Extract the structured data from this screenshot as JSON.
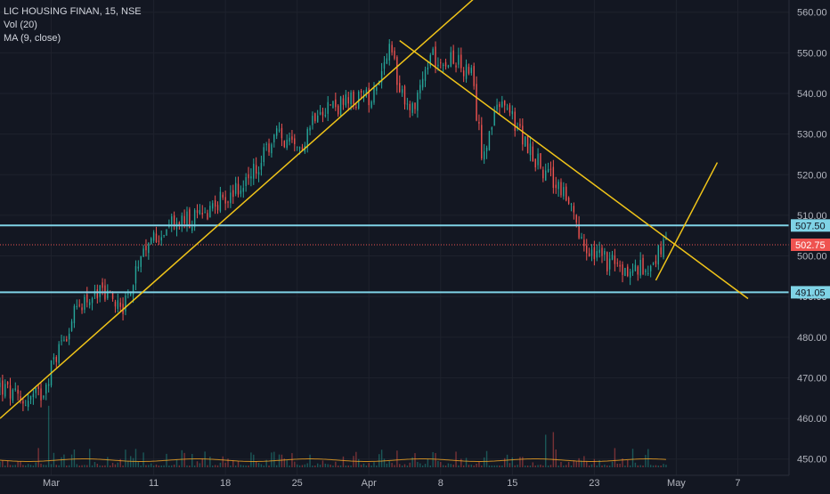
{
  "legend": {
    "symbol_line": "LIC HOUSING FINAN, 15, NSE",
    "volume_line": "Vol (20)",
    "ma_line": "MA (9, close)"
  },
  "colors": {
    "background": "#131722",
    "grid": "#1e222d",
    "axis_text": "#b2b5be",
    "up_candle": "#26a69a",
    "down_candle": "#ef5350",
    "trendline": "#f0c419",
    "level_line": "#7fd3e6",
    "price_line": "#ef5350",
    "ma_line": "#f5a623"
  },
  "chart_data": {
    "type": "candlestick",
    "title": "LIC HOUSING FINAN, 15, NSE",
    "x_tick_labels": [
      "Mar",
      "11",
      "18",
      "25",
      "Apr",
      "8",
      "15",
      "23",
      "May",
      "7"
    ],
    "x_tick_dates": [
      "2019-03-01",
      "2019-03-11",
      "2019-03-18",
      "2019-03-25",
      "2019-04-01",
      "2019-04-08",
      "2019-04-15",
      "2019-04-23",
      "2019-05-01",
      "2019-05-07"
    ],
    "y_tick_labels": [
      "450.00",
      "460.00",
      "470.00",
      "480.00",
      "490.00",
      "500.00",
      "510.00",
      "520.00",
      "530.00",
      "540.00",
      "550.00",
      "560.00"
    ],
    "ylim": [
      446,
      563
    ],
    "xlim": [
      "2019-02-24",
      "2019-05-12"
    ],
    "grid": true,
    "price_path": [
      {
        "x": "2019-02-24",
        "y": 468
      },
      {
        "x": "2019-02-26",
        "y": 464
      },
      {
        "x": "2019-02-28",
        "y": 466
      },
      {
        "x": "2019-03-02",
        "y": 479
      },
      {
        "x": "2019-03-04",
        "y": 489
      },
      {
        "x": "2019-03-06",
        "y": 491
      },
      {
        "x": "2019-03-08",
        "y": 488
      },
      {
        "x": "2019-03-11",
        "y": 505
      },
      {
        "x": "2019-03-13",
        "y": 508
      },
      {
        "x": "2019-03-15",
        "y": 509
      },
      {
        "x": "2019-03-17",
        "y": 513
      },
      {
        "x": "2019-03-19",
        "y": 516
      },
      {
        "x": "2019-03-21",
        "y": 521
      },
      {
        "x": "2019-03-23",
        "y": 530
      },
      {
        "x": "2019-03-25",
        "y": 525
      },
      {
        "x": "2019-03-27",
        "y": 537
      },
      {
        "x": "2019-03-29",
        "y": 537
      },
      {
        "x": "2019-04-01",
        "y": 539
      },
      {
        "x": "2019-04-03",
        "y": 550
      },
      {
        "x": "2019-04-05",
        "y": 535
      },
      {
        "x": "2019-04-07",
        "y": 549
      },
      {
        "x": "2019-04-09",
        "y": 549
      },
      {
        "x": "2019-04-11",
        "y": 544
      },
      {
        "x": "2019-04-12",
        "y": 526
      },
      {
        "x": "2019-04-14",
        "y": 538
      },
      {
        "x": "2019-04-16",
        "y": 529
      },
      {
        "x": "2019-04-18",
        "y": 521
      },
      {
        "x": "2019-04-20",
        "y": 516
      },
      {
        "x": "2019-04-22",
        "y": 501
      },
      {
        "x": "2019-04-24",
        "y": 499
      },
      {
        "x": "2019-04-26",
        "y": 496
      },
      {
        "x": "2019-04-28",
        "y": 497
      },
      {
        "x": "2019-04-30",
        "y": 502.75
      }
    ],
    "horizontal_levels": [
      {
        "label": "507.50",
        "value": 507.5
      },
      {
        "label": "491.05",
        "value": 491.05
      }
    ],
    "last_price": {
      "label": "502.75",
      "value": 502.75
    },
    "hidden_tick_label": "490.00",
    "trendlines": [
      {
        "name": "rising-support",
        "x1": "2019-02-24",
        "y1": 460,
        "x2": "2019-04-12",
        "y2": 565
      },
      {
        "name": "falling-resistance",
        "x1": "2019-04-04",
        "y1": 553,
        "x2": "2019-05-08",
        "y2": 489.5
      },
      {
        "name": "projection",
        "x1": "2019-04-29",
        "y1": 494,
        "x2": "2019-05-05",
        "y2": 523
      }
    ]
  }
}
